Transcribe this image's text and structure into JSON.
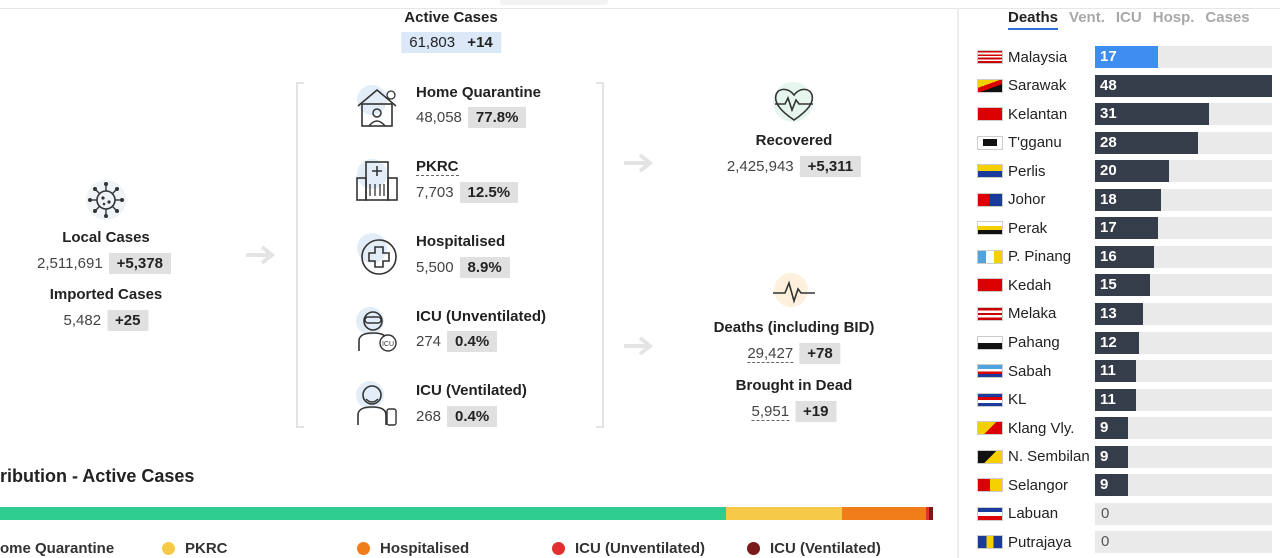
{
  "active": {
    "label": "Active Cases",
    "value": "61,803",
    "delta": "+14"
  },
  "local": {
    "label": "Local Cases",
    "value": "2,511,691",
    "delta": "+5,378"
  },
  "imported": {
    "label": "Imported Cases",
    "value": "5,482",
    "delta": "+25"
  },
  "categories": [
    {
      "label": "Home Quarantine",
      "value": "48,058",
      "pct": "77.8%",
      "icon": "home-quarantine-icon"
    },
    {
      "label": "PKRC",
      "value": "7,703",
      "pct": "12.5%",
      "icon": "hospital-building-icon"
    },
    {
      "label": "Hospitalised",
      "value": "5,500",
      "pct": "8.9%",
      "icon": "medical-cross-icon"
    },
    {
      "label": "ICU (Unventilated)",
      "value": "274",
      "pct": "0.4%",
      "icon": "icu-patient-icon"
    },
    {
      "label": "ICU (Ventilated)",
      "value": "268",
      "pct": "0.4%",
      "icon": "ventilator-icon"
    }
  ],
  "recovered": {
    "label": "Recovered",
    "value": "2,425,943",
    "delta": "+5,311",
    "icon": "heart-pulse-icon"
  },
  "deaths": {
    "label": "Deaths (including BID)",
    "value": "29,427",
    "delta": "+78",
    "icon": "pulse-line-icon"
  },
  "bid": {
    "label": "Brought in Dead",
    "value": "5,951",
    "delta": "+19"
  },
  "distribution": {
    "title": "ribution - Active Cases",
    "segments": [
      {
        "label": "ome Quarantine",
        "fraction": 0.778,
        "color": "#2ecc8f"
      },
      {
        "label": "PKRC",
        "fraction": 0.125,
        "color": "#f7c948"
      },
      {
        "label": "Hospitalised",
        "fraction": 0.089,
        "color": "#f07c1a"
      },
      {
        "label": "ICU (Unventilated)",
        "fraction": 0.004,
        "color": "#e03030"
      },
      {
        "label": "ICU (Ventilated)",
        "fraction": 0.004,
        "color": "#7a1a1a"
      }
    ]
  },
  "tabs": [
    "Deaths",
    "Vent.",
    "ICU",
    "Hosp.",
    "Cases"
  ],
  "active_tab": "Deaths",
  "states": [
    {
      "name": "Malaysia",
      "value": 17,
      "highlight": true
    },
    {
      "name": "Sarawak",
      "value": 48
    },
    {
      "name": "Kelantan",
      "value": 31
    },
    {
      "name": "T'gganu",
      "value": 28
    },
    {
      "name": "Perlis",
      "value": 20
    },
    {
      "name": "Johor",
      "value": 18
    },
    {
      "name": "Perak",
      "value": 17
    },
    {
      "name": "P. Pinang",
      "value": 16
    },
    {
      "name": "Kedah",
      "value": 15
    },
    {
      "name": "Melaka",
      "value": 13
    },
    {
      "name": "Pahang",
      "value": 12
    },
    {
      "name": "Sabah",
      "value": 11
    },
    {
      "name": "KL",
      "value": 11
    },
    {
      "name": "Klang Vly.",
      "value": 9
    },
    {
      "name": "N. Sembilan",
      "value": 9
    },
    {
      "name": "Selangor",
      "value": 9
    },
    {
      "name": "Labuan",
      "value": 0
    },
    {
      "name": "Putrajaya",
      "value": 0
    }
  ],
  "bar_max": 48
}
